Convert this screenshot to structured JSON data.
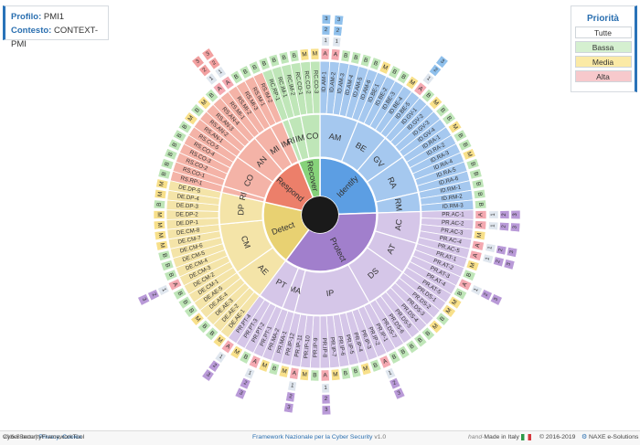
{
  "profile": {
    "label": "Profilo:",
    "value": "PMI1"
  },
  "context": {
    "label": "Contesto:",
    "value": "CONTEXT-PMI"
  },
  "legend": {
    "title": "Priorità",
    "items": [
      {
        "label": "Tutte",
        "color": "#ffffff"
      },
      {
        "label": "Bassa",
        "color": "#d5f0d0"
      },
      {
        "label": "Media",
        "color": "#fbeaa6"
      },
      {
        "label": "Alta",
        "color": "#f7c9cc"
      }
    ]
  },
  "footer": {
    "tool": "CyberSecurityFrameworkTool",
    "version": "v0.6.5-beta",
    "sep": "|",
    "privacy": "Privacy",
    "cookie": "Cookie",
    "framework": "Framework Nazionale per la Cyber Security",
    "framework_version": "v1.0",
    "made_prefix": "hand-",
    "made": "Made in Italy",
    "copyright": "© 2016-2019",
    "company": "NAXE e-Solutions"
  },
  "chart_data": {
    "type": "sunburst",
    "center_color": "#1a1a1a",
    "functions": [
      {
        "name": "Identify",
        "color": "#a5c8ef",
        "bright": "#5c9ee3",
        "categories": [
          {
            "code": "AM",
            "subs": [
              "ID.AM-1",
              "ID.AM-2",
              "ID.AM-3",
              "ID.AM-4",
              "ID.AM-5",
              "ID.AM-6"
            ],
            "pri": [
              "A",
              "A",
              "B",
              "B",
              "B",
              "B"
            ]
          },
          {
            "code": "BE",
            "subs": [
              "ID.BE-1",
              "ID.BE-2",
              "ID.BE-3",
              "ID.BE-4",
              "ID.BE-5"
            ],
            "pri": [
              "M",
              "B",
              "B",
              "M",
              "A"
            ]
          },
          {
            "code": "GV",
            "subs": [
              "ID.GV-1",
              "ID.GV-2",
              "ID.GV-3",
              "ID.GV-4"
            ],
            "pri": [
              "B",
              "M",
              "B",
              "B"
            ]
          },
          {
            "code": "RA",
            "subs": [
              "ID.RA-1",
              "ID.RA-2",
              "ID.RA-3",
              "ID.RA-4",
              "ID.RA-5",
              "ID.RA-6"
            ],
            "pri": [
              "M",
              "B",
              "B",
              "M",
              "B",
              "B"
            ]
          },
          {
            "code": "RM",
            "subs": [
              "ID.RM-1",
              "ID.RM-2",
              "ID.RM-3"
            ],
            "pri": [
              "B",
              "B",
              "B"
            ]
          }
        ]
      },
      {
        "name": "Protect",
        "color": "#d5c6e8",
        "bright": "#a17fcc",
        "categories": [
          {
            "code": "AC",
            "subs": [
              "PR.AC-1",
              "PR.AC-2",
              "PR.AC-3",
              "PR.AC-4",
              "PR.AC-5"
            ],
            "pri": [
              "A",
              "A",
              "M",
              "A",
              "A"
            ]
          },
          {
            "code": "AT",
            "subs": [
              "PR.AT-1",
              "PR.AT-2",
              "PR.AT-3",
              "PR.AT-4",
              "PR.AT-5"
            ],
            "pri": [
              "M",
              "B",
              "A",
              "B",
              "M"
            ]
          },
          {
            "code": "DS",
            "subs": [
              "PR.DS-1",
              "PR.DS-2",
              "PR.DS-3",
              "PR.DS-4",
              "PR.DS-5",
              "PR.DS-6",
              "PR.DS-7"
            ],
            "pri": [
              "M",
              "B",
              "M",
              "B",
              "B",
              "B",
              "B"
            ]
          },
          {
            "code": "IP",
            "subs": [
              "PR.IP-1",
              "PR.IP-2",
              "PR.IP-3",
              "PR.IP-4",
              "PR.IP-5",
              "PR.IP-6",
              "PR.IP-7",
              "PR.IP-8",
              "PR.IP-9",
              "PR.IP-10",
              "PR.IP-11",
              "PR.IP-12"
            ],
            "pri": [
              "B",
              "A",
              "B",
              "M",
              "B",
              "B",
              "M",
              "A",
              "B",
              "M",
              "A",
              "M"
            ]
          },
          {
            "code": "MA",
            "subs": [
              "PR.MA-1",
              "PR.MA-2"
            ],
            "pri": [
              "B",
              "M"
            ]
          },
          {
            "code": "PT",
            "subs": [
              "PR.PT-1",
              "PR.PT-2",
              "PR.PT-3",
              "PR.PT-4"
            ],
            "pri": [
              "A",
              "B",
              "M",
              "A"
            ]
          }
        ]
      },
      {
        "name": "Detect",
        "color": "#f4e4a8",
        "bright": "#e8d172",
        "categories": [
          {
            "code": "AE",
            "subs": [
              "DE.AE-1",
              "DE.AE-2",
              "DE.AE-3",
              "DE.AE-4",
              "DE.AE-5"
            ],
            "pri": [
              "M",
              "B",
              "B",
              "M",
              "B"
            ]
          },
          {
            "code": "CM",
            "subs": [
              "DE.CM-1",
              "DE.CM-2",
              "DE.CM-3",
              "DE.CM-4",
              "DE.CM-5",
              "DE.CM-6",
              "DE.CM-7",
              "DE.CM-8"
            ],
            "pri": [
              "B",
              "B",
              "A",
              "B",
              "B",
              "B",
              "M",
              "M"
            ]
          },
          {
            "code": "DP",
            "subs": [
              "DE.DP-1",
              "DE.DP-2",
              "DE.DP-3",
              "DE.DP-4",
              "DE.DP-5"
            ],
            "pri": [
              "M",
              "M",
              "B",
              "M",
              "M"
            ]
          }
        ]
      },
      {
        "name": "Respond",
        "color": "#f4b3a7",
        "bright": "#ec7f6a",
        "categories": [
          {
            "code": "RP",
            "subs": [
              "RS.RP-1"
            ],
            "pri": [
              "B"
            ]
          },
          {
            "code": "CO",
            "subs": [
              "RS.CO-1",
              "RS.CO-2",
              "RS.CO-3",
              "RS.CO-4",
              "RS.CO-5"
            ],
            "pri": [
              "B",
              "B",
              "B",
              "B",
              "B"
            ]
          },
          {
            "code": "AN",
            "subs": [
              "RS.AN-1",
              "RS.AN-2",
              "RS.AN-3",
              "RS.AN-4"
            ],
            "pri": [
              "M",
              "B",
              "M",
              "B"
            ]
          },
          {
            "code": "MI",
            "subs": [
              "RS.MI-1",
              "RS.MI-2",
              "RS.MI-3"
            ],
            "pri": [
              "A",
              "A",
              "B"
            ]
          },
          {
            "code": "IM",
            "subs": [
              "RS.IM-1",
              "RS.IM-2"
            ],
            "pri": [
              "B",
              "B"
            ]
          }
        ]
      },
      {
        "name": "Recover",
        "color": "#bfe6b8",
        "bright": "#86d27a",
        "categories": [
          {
            "code": "RP",
            "subs": [
              "RC.RP-1"
            ],
            "pri": [
              "B"
            ]
          },
          {
            "code": "IM",
            "subs": [
              "RC.IM-1",
              "RC.IM-2"
            ],
            "pri": [
              "B",
              "B"
            ]
          },
          {
            "code": "CO",
            "subs": [
              "RC.CO-1",
              "RC.CO-2",
              "RC.CO-3"
            ],
            "pri": [
              "B",
              "M",
              "M"
            ]
          }
        ]
      }
    ],
    "level_labels": [
      "1",
      "2",
      "3"
    ],
    "priority_colors": {
      "A": "#f4a9b1",
      "M": "#f8e08a",
      "B": "#bfe6b8"
    },
    "level_colors": {
      "Identify": "#8fc0ec",
      "Protect": "#b99ad8",
      "Detect": "#b99ad8",
      "Respond": "#f2a0a0",
      "Recover": "#8fc0ec"
    }
  }
}
